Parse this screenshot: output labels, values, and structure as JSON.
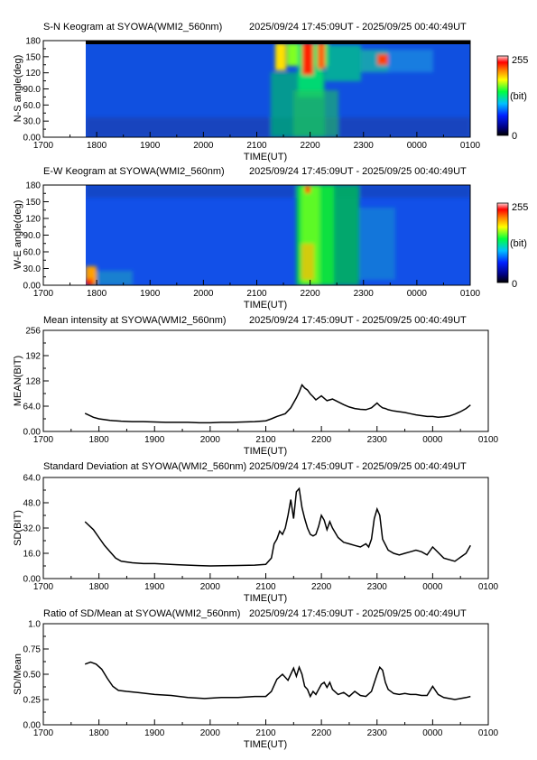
{
  "time_range": "2025/09/24 17:45:09UT - 2025/09/25 00:40:49UT",
  "x_ticks": [
    "1700",
    "1800",
    "1900",
    "2000",
    "2100",
    "2200",
    "2300",
    "0000",
    "0100"
  ],
  "x_label": "TIME(UT)",
  "colorbar": {
    "max_label": "255",
    "min_label": "0",
    "unit_label": "(bit)"
  },
  "chart_data": [
    {
      "type": "heatmap",
      "title": "S-N Keogram at SYOWA(WMI2_560nm)",
      "ylabel": "N-S angle(deg)",
      "y_ticks": [
        "0.00",
        "30.0",
        "60.0",
        "90.0",
        "120",
        "150",
        "180"
      ],
      "ylim": [
        0,
        180
      ],
      "xlim_hours": [
        17.0,
        25.0
      ],
      "data_start_hour": 17.75,
      "data_end_hour": 24.68,
      "colorscale": "rainbow 0-255"
    },
    {
      "type": "heatmap",
      "title": "E-W Keogram at SYOWA(WMI2_560nm)",
      "ylabel": "W-E angle(deg)",
      "y_ticks": [
        "0.00",
        "30.0",
        "60.0",
        "90.0",
        "120",
        "150",
        "180"
      ],
      "ylim": [
        0,
        180
      ],
      "xlim_hours": [
        17.0,
        25.0
      ],
      "data_start_hour": 17.75,
      "data_end_hour": 24.68,
      "colorscale": "rainbow 0-255"
    },
    {
      "type": "line",
      "title": "Mean intensity at SYOWA(WMI2_560nm)",
      "ylabel": "MEAN(BIT)",
      "y_ticks": [
        "0.00",
        "64.0",
        "128",
        "192",
        "256"
      ],
      "ylim": [
        0,
        256
      ],
      "xlim_hours": [
        17.0,
        25.0
      ],
      "x_hours": [
        17.75,
        17.9,
        18.0,
        18.2,
        18.4,
        18.6,
        18.8,
        19.0,
        19.2,
        19.4,
        19.6,
        19.8,
        20.0,
        20.2,
        20.4,
        20.6,
        20.8,
        21.0,
        21.1,
        21.2,
        21.35,
        21.45,
        21.55,
        21.6,
        21.65,
        21.7,
        21.75,
        21.8,
        21.85,
        21.9,
        21.95,
        22.0,
        22.1,
        22.2,
        22.3,
        22.4,
        22.5,
        22.6,
        22.7,
        22.8,
        22.9,
        23.0,
        23.05,
        23.1,
        23.15,
        23.2,
        23.3,
        23.4,
        23.5,
        23.6,
        23.7,
        23.8,
        23.9,
        24.0,
        24.1,
        24.2,
        24.3,
        24.4,
        24.5,
        24.6,
        24.68
      ],
      "values": [
        46,
        36,
        32,
        28,
        26,
        25,
        25,
        24,
        23,
        23,
        23,
        22,
        22,
        23,
        23,
        24,
        25,
        27,
        32,
        38,
        45,
        60,
        85,
        100,
        118,
        110,
        105,
        95,
        88,
        80,
        85,
        90,
        78,
        82,
        75,
        68,
        62,
        58,
        56,
        55,
        60,
        72,
        65,
        60,
        58,
        55,
        52,
        50,
        48,
        45,
        42,
        40,
        38,
        38,
        36,
        37,
        39,
        44,
        50,
        58,
        67
      ]
    },
    {
      "type": "line",
      "title": "Standard Deviation at SYOWA(WMI2_560nm)",
      "ylabel": "SD(BIT)",
      "y_ticks": [
        "0.00",
        "16.0",
        "32.0",
        "48.0",
        "64.0"
      ],
      "ylim": [
        0,
        64
      ],
      "xlim_hours": [
        17.0,
        25.0
      ],
      "x_hours": [
        17.75,
        17.9,
        18.0,
        18.1,
        18.2,
        18.3,
        18.4,
        18.6,
        18.8,
        19.0,
        19.4,
        19.8,
        20.0,
        20.4,
        20.8,
        21.0,
        21.1,
        21.15,
        21.2,
        21.25,
        21.3,
        21.35,
        21.4,
        21.45,
        21.5,
        21.55,
        21.6,
        21.65,
        21.7,
        21.75,
        21.8,
        21.85,
        21.9,
        21.95,
        22.0,
        22.05,
        22.1,
        22.15,
        22.2,
        22.3,
        22.4,
        22.5,
        22.6,
        22.7,
        22.8,
        22.85,
        22.9,
        22.95,
        23.0,
        23.05,
        23.1,
        23.2,
        23.3,
        23.4,
        23.5,
        23.6,
        23.7,
        23.8,
        23.9,
        24.0,
        24.2,
        24.4,
        24.6,
        24.68
      ],
      "values": [
        36,
        31,
        26,
        21,
        17,
        13,
        11,
        10,
        9.5,
        9.5,
        8.8,
        8.2,
        8.0,
        8.2,
        8.5,
        9.0,
        13,
        22,
        25,
        30,
        28,
        32,
        40,
        50,
        38,
        55,
        57,
        45,
        38,
        32,
        28,
        27,
        28,
        33,
        40,
        37,
        31,
        36,
        32,
        26,
        23,
        22,
        21,
        20,
        22,
        20,
        25,
        38,
        44,
        40,
        25,
        18,
        16,
        15,
        16,
        17,
        18,
        17,
        15,
        20,
        13,
        11,
        16,
        21
      ]
    },
    {
      "type": "line",
      "title": "Ratio of SD/Mean at SYOWA(WMI2_560nm)",
      "ylabel": "SD/Mean",
      "y_ticks": [
        "0.00",
        "0.25",
        "0.50",
        "0.75",
        "1.0"
      ],
      "ylim": [
        0,
        1.0
      ],
      "xlim_hours": [
        17.0,
        25.0
      ],
      "x_hours": [
        17.75,
        17.85,
        17.95,
        18.05,
        18.15,
        18.25,
        18.35,
        18.5,
        18.7,
        19.0,
        19.3,
        19.6,
        19.9,
        20.2,
        20.5,
        20.8,
        21.0,
        21.1,
        21.2,
        21.3,
        21.4,
        21.5,
        21.55,
        21.6,
        21.65,
        21.7,
        21.75,
        21.8,
        21.85,
        21.9,
        21.95,
        22.0,
        22.05,
        22.1,
        22.15,
        22.2,
        22.3,
        22.4,
        22.5,
        22.6,
        22.7,
        22.8,
        22.9,
        23.0,
        23.05,
        23.1,
        23.15,
        23.2,
        23.3,
        23.4,
        23.5,
        23.6,
        23.7,
        23.8,
        23.9,
        24.0,
        24.1,
        24.2,
        24.3,
        24.4,
        24.5,
        24.6,
        24.68
      ],
      "values": [
        0.6,
        0.62,
        0.6,
        0.55,
        0.46,
        0.38,
        0.34,
        0.33,
        0.32,
        0.3,
        0.29,
        0.27,
        0.26,
        0.27,
        0.27,
        0.28,
        0.28,
        0.33,
        0.45,
        0.5,
        0.44,
        0.56,
        0.48,
        0.57,
        0.5,
        0.38,
        0.35,
        0.28,
        0.33,
        0.3,
        0.35,
        0.4,
        0.42,
        0.37,
        0.42,
        0.35,
        0.3,
        0.32,
        0.28,
        0.33,
        0.29,
        0.28,
        0.33,
        0.5,
        0.57,
        0.54,
        0.42,
        0.35,
        0.31,
        0.3,
        0.31,
        0.3,
        0.3,
        0.29,
        0.29,
        0.38,
        0.3,
        0.27,
        0.26,
        0.25,
        0.26,
        0.27,
        0.28
      ]
    }
  ]
}
